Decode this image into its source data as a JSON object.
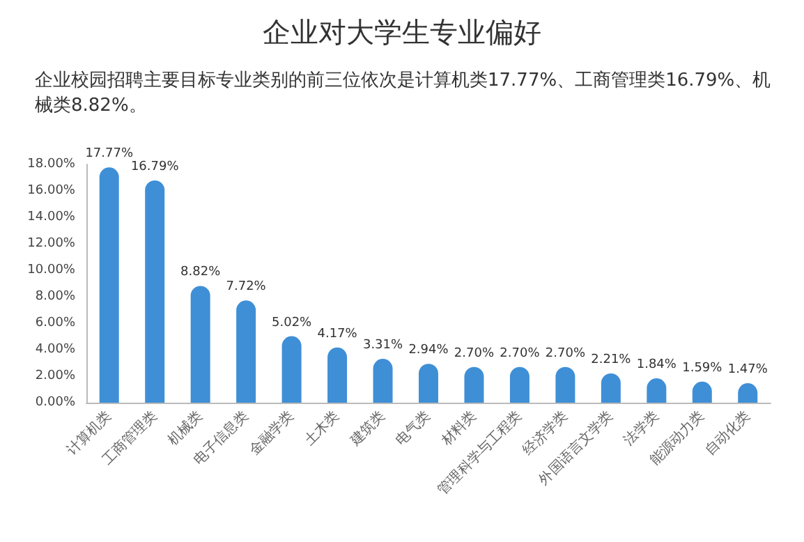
{
  "chart_data": {
    "type": "bar",
    "title": "企业对大学生专业偏好",
    "subtitle": "企业校园招聘主要目标专业类别的前三位依次是计算机类17.77%、工商管理类16.79%、机械类8.82%。",
    "categories": [
      "计算机类",
      "工商管理类",
      "机械类",
      "电子信息类",
      "金融学类",
      "土木类",
      "建筑类",
      "电气类",
      "材料类",
      "管理科学与工程类",
      "经济学类",
      "外国语言文学类",
      "法学类",
      "能源动力类",
      "自动化类"
    ],
    "values": [
      17.77,
      16.79,
      8.82,
      7.72,
      5.02,
      4.17,
      3.31,
      2.94,
      2.7,
      2.7,
      2.7,
      2.21,
      1.84,
      1.59,
      1.47
    ],
    "value_labels": [
      "17.77%",
      "16.79%",
      "8.82%",
      "7.72%",
      "5.02%",
      "4.17%",
      "3.31%",
      "2.94%",
      "2.70%",
      "2.70%",
      "2.70%",
      "2.21%",
      "1.84%",
      "1.59%",
      "1.47%"
    ],
    "color": "#3f8fd6",
    "ylim": [
      0,
      18
    ],
    "yticks": [
      {
        "value": 0,
        "label": "0.00%"
      },
      {
        "value": 2,
        "label": "2.00%"
      },
      {
        "value": 4,
        "label": "4.00%"
      },
      {
        "value": 6,
        "label": "6.00%"
      },
      {
        "value": 8,
        "label": "8.00%"
      },
      {
        "value": 10,
        "label": "10.00%"
      },
      {
        "value": 12,
        "label": "12.00%"
      },
      {
        "value": 14,
        "label": "14.00%"
      },
      {
        "value": 16,
        "label": "16.00%"
      },
      {
        "value": 18,
        "label": "18.00%"
      }
    ],
    "grid": false
  }
}
